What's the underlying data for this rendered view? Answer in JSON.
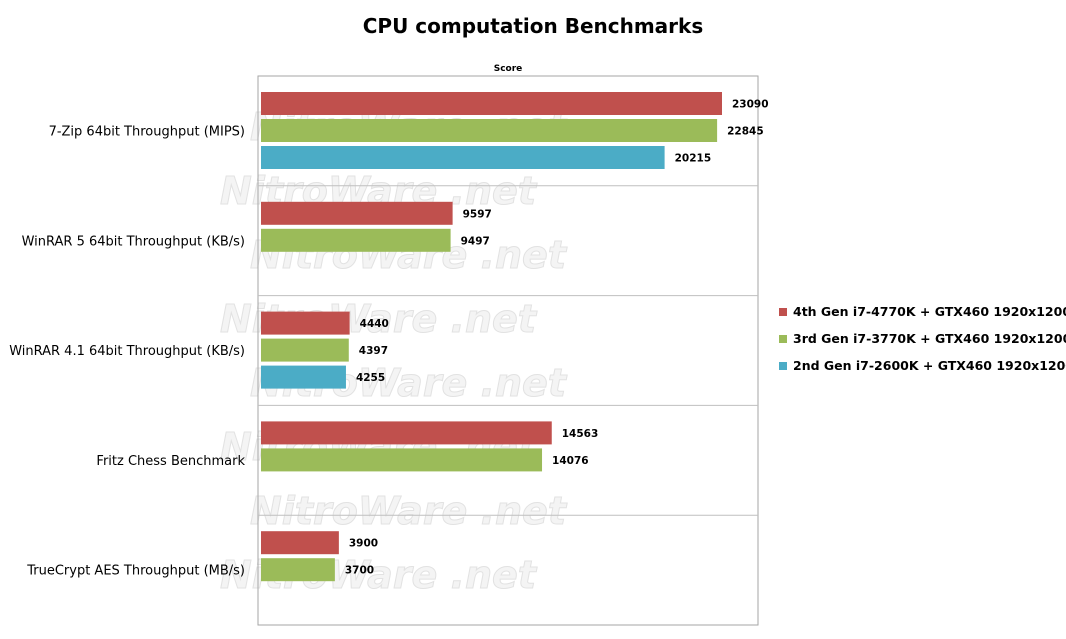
{
  "watermark_text": "NitroWare .net",
  "chart_data": {
    "type": "bar",
    "orientation": "horizontal",
    "title": "CPU computation Benchmarks",
    "xlabel": "Score",
    "ylabel": "",
    "grid": true,
    "legend_position": "right",
    "categories": [
      "7-Zip 64bit Throughput (MIPS)",
      "WinRAR 5 64bit Throughput (KB/s)",
      "WinRAR 4.1 64bit Throughput (KB/s)",
      "Fritz Chess Benchmark",
      "TrueCrypt AES Throughput (MB/s)"
    ],
    "series": [
      {
        "name": "4th Gen i7-4770K + GTX460 1920x1200",
        "color": "#c0504d",
        "values": [
          23090,
          9597,
          4440,
          14563,
          3900
        ]
      },
      {
        "name": "3rd Gen i7-3770K + GTX460 1920x1200",
        "color": "#9bbb59",
        "values": [
          22845,
          9497,
          4397,
          14076,
          3700
        ]
      },
      {
        "name": "2nd Gen i7-2600K + GTX460 1920x1200",
        "color": "#4bacc6",
        "values": [
          20215,
          null,
          4255,
          null,
          null
        ]
      }
    ]
  }
}
